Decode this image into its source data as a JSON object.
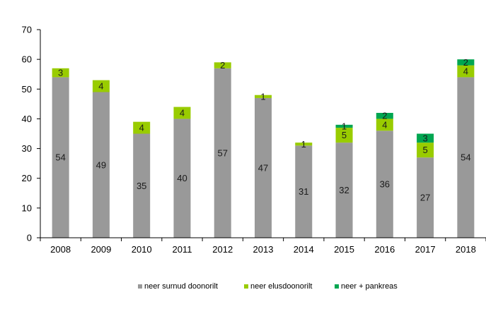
{
  "chart_data": {
    "type": "bar",
    "stacked": true,
    "categories": [
      "2008",
      "2009",
      "2010",
      "2011",
      "2012",
      "2013",
      "2014",
      "2015",
      "2016",
      "2017",
      "2018"
    ],
    "series": [
      {
        "name": "neer surnud doonorilt",
        "color": "#999999",
        "values": [
          54,
          49,
          35,
          40,
          57,
          47,
          31,
          32,
          36,
          27,
          54
        ]
      },
      {
        "name": "neer elusdoonorilt",
        "color": "#99cc00",
        "values": [
          3,
          4,
          4,
          4,
          2,
          1,
          1,
          5,
          4,
          5,
          4
        ]
      },
      {
        "name": "neer + pankreas",
        "color": "#00a651",
        "values": [
          0,
          0,
          0,
          0,
          0,
          0,
          0,
          1,
          2,
          3,
          2
        ]
      }
    ],
    "ylim": [
      0,
      70
    ],
    "yticks": [
      0,
      10,
      20,
      30,
      40,
      50,
      60,
      70
    ],
    "grid": false,
    "legend_position": "bottom"
  }
}
